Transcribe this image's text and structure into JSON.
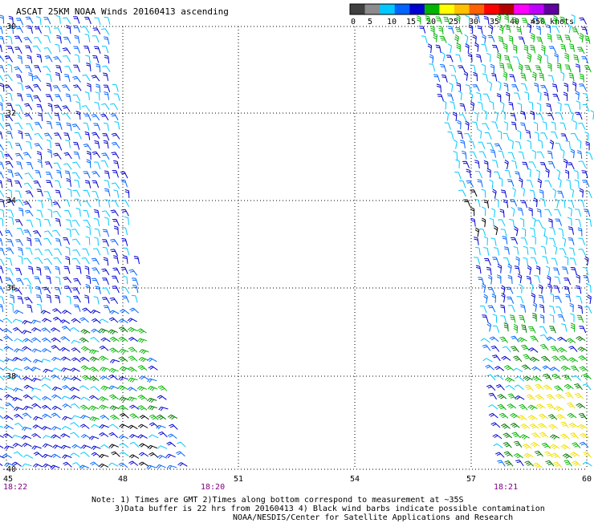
{
  "title": "ASCAT 25KM NOAA Winds 20160413 ascending",
  "legend": {
    "ticks": [
      "0",
      "5",
      "10",
      "15",
      "20",
      "25",
      "30",
      "35",
      "40",
      "45",
      ">50 knots"
    ],
    "colors": [
      "#404040",
      "#8c8c8c",
      "#00c8ff",
      "#0064ff",
      "#0000d0",
      "#00b400",
      "#ffff00",
      "#ffc000",
      "#ff6000",
      "#ff0000",
      "#b40000",
      "#ff00ff",
      "#c000ff",
      "#6000a0"
    ]
  },
  "map": {
    "lat_labels": [
      "-30",
      "-32",
      "-34",
      "-36",
      "-38",
      "-40"
    ],
    "lon_labels": [
      "45",
      "48",
      "51",
      "54",
      "57",
      "60"
    ],
    "time_labels": [
      "18:22",
      "18:20",
      "18:21"
    ],
    "barb_colors": {
      "blue": "#0000d0",
      "mid_blue": "#0064ff",
      "cyan": "#00c8ff",
      "green": "#00b400",
      "dark_green": "#007800",
      "yellow": "#f0e000",
      "black": "#000000"
    }
  },
  "notes": {
    "line1": "Note: 1) Times are GMT 2)Times along bottom correspond to measurement at ~35S",
    "line2": "3)Data buffer is 22 hrs from 20160413 4) Black wind barbs indicate possible contamination",
    "line3": "NOAA/NESDIS/Center for Satellite Applications and Research"
  }
}
